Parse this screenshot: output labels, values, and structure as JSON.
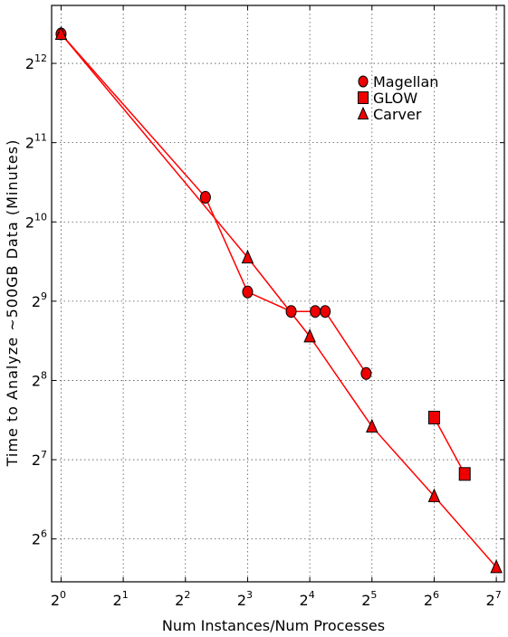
{
  "chart_data": {
    "type": "line",
    "xlabel": "Num Instances/Num Processes",
    "ylabel": "Time to Analyze ~500GB Data (Minutes)",
    "x_scale": "log2",
    "y_scale": "log2",
    "xlim": [
      0.9,
      140
    ],
    "ylim": [
      44,
      6800
    ],
    "x_ticks": [
      {
        "value": 1,
        "base": "2",
        "exp": "0"
      },
      {
        "value": 2,
        "base": "2",
        "exp": "1"
      },
      {
        "value": 4,
        "base": "2",
        "exp": "2"
      },
      {
        "value": 8,
        "base": "2",
        "exp": "3"
      },
      {
        "value": 16,
        "base": "2",
        "exp": "4"
      },
      {
        "value": 32,
        "base": "2",
        "exp": "5"
      },
      {
        "value": 64,
        "base": "2",
        "exp": "6"
      },
      {
        "value": 128,
        "base": "2",
        "exp": "7"
      }
    ],
    "y_ticks": [
      {
        "value": 64,
        "base": "2",
        "exp": "6"
      },
      {
        "value": 128,
        "base": "2",
        "exp": "7"
      },
      {
        "value": 256,
        "base": "2",
        "exp": "8"
      },
      {
        "value": 512,
        "base": "2",
        "exp": "9"
      },
      {
        "value": 1024,
        "base": "2",
        "exp": "10"
      },
      {
        "value": 2048,
        "base": "2",
        "exp": "11"
      },
      {
        "value": 4096,
        "base": "2",
        "exp": "12"
      }
    ],
    "grid": true,
    "legend_position": "top-right",
    "line_color": "#ff0000",
    "marker_fill": "#ee0000",
    "series": [
      {
        "name": "Magellan",
        "marker": "circle",
        "points": [
          {
            "x": 1,
            "y": 5300
          },
          {
            "x": 5,
            "y": 1270
          },
          {
            "x": 8,
            "y": 555
          },
          {
            "x": 13,
            "y": 468
          },
          {
            "x": 17,
            "y": 468
          },
          {
            "x": 19,
            "y": 468
          },
          {
            "x": 30,
            "y": 272
          }
        ]
      },
      {
        "name": "GLOW",
        "marker": "square",
        "points": [
          {
            "x": 64,
            "y": 185
          },
          {
            "x": 90,
            "y": 113
          }
        ]
      },
      {
        "name": "Carver",
        "marker": "triangle",
        "points": [
          {
            "x": 1,
            "y": 5300
          },
          {
            "x": 8,
            "y": 750
          },
          {
            "x": 16,
            "y": 376
          },
          {
            "x": 32,
            "y": 171
          },
          {
            "x": 64,
            "y": 93
          },
          {
            "x": 128,
            "y": 50
          }
        ]
      }
    ]
  }
}
